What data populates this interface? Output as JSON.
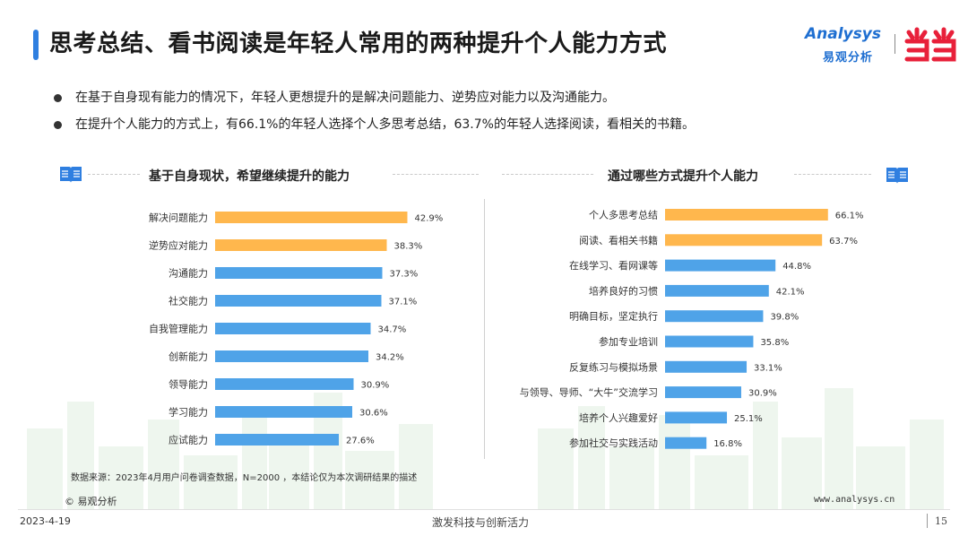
{
  "title": "思考总结、看书阅读是年轻人常用的两种提升个人能力方式",
  "logo": {
    "en": "Analysys",
    "cn": "易观分析"
  },
  "bullets": [
    "在基于自身现有能力的情况下，年轻人更想提升的是解决问题能力、逆势应对能力以及沟通能力。",
    "在提升个人能力的方式上，有66.1%的年轻人选择个人多思考总结，63.7%的年轻人选择阅读，看相关的书籍。"
  ],
  "colors": {
    "highlight": "#ffb74d",
    "normal": "#4fa3e8",
    "accent": "#2f7fe0"
  },
  "chart_data": [
    {
      "type": "bar",
      "orientation": "horizontal",
      "title": "基于自身现状，希望继续提升的能力",
      "unit": "%",
      "categories": [
        "解决问题能力",
        "逆势应对能力",
        "沟通能力",
        "社交能力",
        "自我管理能力",
        "创新能力",
        "领导能力",
        "学习能力",
        "应试能力"
      ],
      "values": [
        42.9,
        38.3,
        37.3,
        37.1,
        34.7,
        34.2,
        30.9,
        30.6,
        27.6
      ],
      "highlight_count": 2
    },
    {
      "type": "bar",
      "orientation": "horizontal",
      "title": "通过哪些方式提升个人能力",
      "unit": "%",
      "categories": [
        "个人多思考总结",
        "阅读、看相关书籍",
        "在线学习、看网课等",
        "培养良好的习惯",
        "明确目标，坚定执行",
        "参加专业培训",
        "反复练习与模拟场景",
        "与领导、导师、“大牛”交流学习",
        "培养个人兴趣爱好",
        "参加社交与实践活动"
      ],
      "values": [
        66.1,
        63.7,
        44.8,
        42.1,
        39.8,
        35.8,
        33.1,
        30.9,
        25.1,
        16.8
      ],
      "highlight_count": 2
    }
  ],
  "footer": {
    "source": "数据来源：2023年4月用户问卷调查数据，N=2000 ，本结论仅为本次调研结果的描述",
    "copyright": "© 易观分析",
    "url": "www.analysys.cn",
    "date": "2023-4-19",
    "slogan": "激发科技与创新活力",
    "page": "15"
  }
}
